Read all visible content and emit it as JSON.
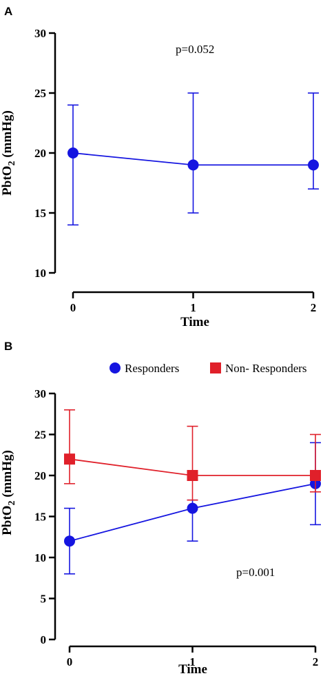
{
  "chart_data": [
    {
      "panel": "A",
      "type": "line",
      "xlabel": "Time",
      "ylabel_main": "PbtO",
      "ylabel_sub": "2",
      "ylabel_tail": " (mmHg)",
      "x": [
        0,
        1,
        2
      ],
      "xlim": [
        0,
        2
      ],
      "ylim": [
        10,
        30
      ],
      "yticks": [
        10,
        15,
        20,
        25,
        30
      ],
      "xticks": [
        0,
        1,
        2
      ],
      "annotation": "p=0.052",
      "series": [
        {
          "name": "",
          "color": "#1515e0",
          "marker": "circle",
          "values": [
            20,
            19,
            19
          ],
          "upper": [
            24,
            25,
            25
          ],
          "lower": [
            14,
            15,
            17
          ]
        }
      ]
    },
    {
      "panel": "B",
      "type": "line",
      "xlabel": "Time",
      "ylabel_main": "PbtO",
      "ylabel_sub": "2",
      "ylabel_tail": " (mmHg)",
      "x": [
        0,
        1,
        2
      ],
      "xlim": [
        0,
        2
      ],
      "ylim": [
        0,
        30
      ],
      "yticks": [
        0,
        5,
        10,
        15,
        20,
        25,
        30
      ],
      "xticks": [
        0,
        1,
        2
      ],
      "annotation": "p=0.001",
      "legend_position": "top",
      "series": [
        {
          "name": "Responders",
          "color": "#1515e0",
          "marker": "circle",
          "values": [
            12,
            16,
            19
          ],
          "upper": [
            16,
            17,
            24
          ],
          "lower": [
            8,
            12,
            14
          ]
        },
        {
          "name": "Non- Responders",
          "color": "#e0202a",
          "marker": "square",
          "values": [
            22,
            20,
            20
          ],
          "upper": [
            28,
            26,
            25
          ],
          "lower": [
            19,
            17,
            18
          ]
        }
      ]
    }
  ]
}
